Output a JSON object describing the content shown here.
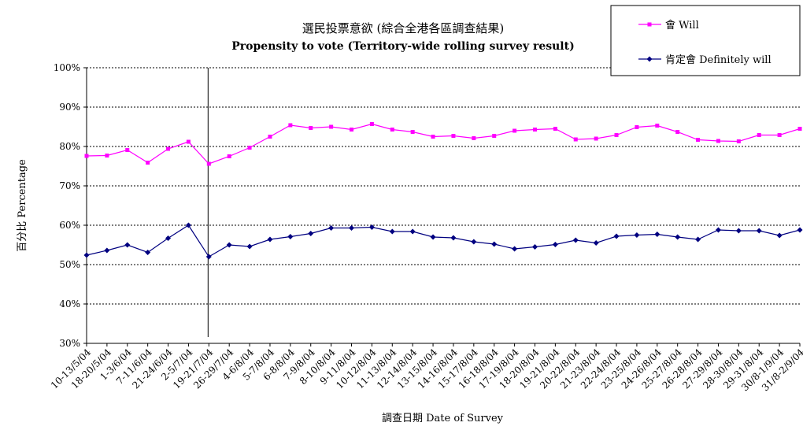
{
  "chart_data": {
    "type": "line",
    "title": "選民投票意欲 (綜合全港各區調查結果)",
    "subtitle": "Propensity to vote (Territory-wide rolling survey result)",
    "xlabel": "調查日期 Date of Survey",
    "ylabel": "百分比 Percentage",
    "ylim": [
      30,
      100
    ],
    "yticks": [
      "30%",
      "40%",
      "50%",
      "60%",
      "70%",
      "80%",
      "90%",
      "100%"
    ],
    "grid": "horizontal dotted",
    "legend_position": "top-right",
    "categories": [
      "10-13/5/04",
      "18-20/5/04",
      "1-3/6/04",
      "7-11/6/04",
      "21-24/6/04",
      "2-5/7/04",
      "19-21/7/04",
      "26-29/7/04",
      "4-6/8/04",
      "5-7/8/04",
      "6-8/8/04",
      "7-9/8/04",
      "8-10/8/04",
      "9-11/8/04",
      "10-12/8/04",
      "11-13/8/04",
      "12-14/8/04",
      "13-15/8/04",
      "14-16/8/04",
      "15-17/8/04",
      "16-18/8/04",
      "17-19/8/04",
      "18-20/8/04",
      "19-21/8/04",
      "20-22/8/04",
      "21-23/8/04",
      "22-24/8/04",
      "23-25/8/04",
      "24-26/8/04",
      "25-27/8/04",
      "26-28/8/04",
      "27-29/8/04",
      "28-30/8/04",
      "29-31/8/04",
      "30/8-1/9/04",
      "31/8-2/9/04"
    ],
    "series": [
      {
        "name": "會 Will",
        "color": "#ff00ff",
        "marker": "square",
        "values": [
          77.6,
          77.7,
          79.1,
          75.9,
          79.4,
          81.2,
          75.6,
          77.5,
          79.7,
          82.5,
          85.4,
          84.7,
          85.0,
          84.3,
          85.7,
          84.3,
          83.7,
          82.5,
          82.7,
          82.1,
          82.7,
          84.0,
          84.3,
          84.5,
          81.8,
          82.0,
          82.9,
          84.9,
          85.3,
          83.7,
          81.7,
          81.4,
          81.3,
          82.9,
          82.9,
          84.5
        ]
      },
      {
        "name": "肯定會 Definitely will",
        "color": "#000080",
        "marker": "diamond",
        "values": [
          52.4,
          53.6,
          55.0,
          53.1,
          56.7,
          60.0,
          52.0,
          55.0,
          54.6,
          56.4,
          57.1,
          57.9,
          59.3,
          59.3,
          59.5,
          58.4,
          58.4,
          57.0,
          56.8,
          55.8,
          55.2,
          54.0,
          54.5,
          55.1,
          56.2,
          55.5,
          57.2,
          57.5,
          57.7,
          57.0,
          56.4,
          58.8,
          58.6,
          58.6,
          57.4,
          58.8
        ]
      }
    ],
    "marker_line_after_index": 6
  }
}
